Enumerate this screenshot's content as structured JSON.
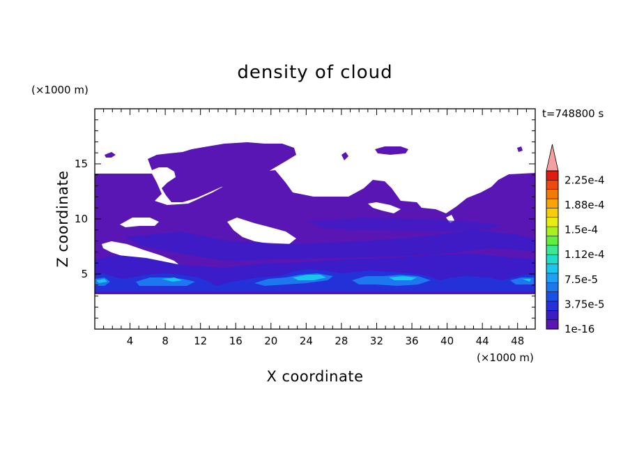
{
  "chart_data": {
    "type": "heatmap",
    "title": "density of cloud",
    "xlabel": "X coordinate",
    "ylabel": "Z coordinate",
    "x_unit": "(×1000 m)",
    "y_unit": "(×1000 m)",
    "time_label": "t=748800 s",
    "xlim": [
      0,
      50
    ],
    "ylim": [
      0,
      20
    ],
    "x_ticks": [
      4,
      8,
      12,
      16,
      20,
      24,
      28,
      32,
      36,
      40,
      44,
      48
    ],
    "y_ticks": [
      5,
      10,
      15
    ],
    "colorbar": {
      "labels": [
        "1e-16",
        "3.75e-5",
        "7.5e-5",
        "1.12e-4",
        "1.5e-4",
        "1.88e-4",
        "2.25e-4"
      ],
      "colors": [
        "#5a16b4",
        "#3b1cc8",
        "#2430d8",
        "#1a50e8",
        "#1d78f0",
        "#1ea0f4",
        "#18c6ee",
        "#20dcc8",
        "#3ce890",
        "#62ee40",
        "#a8f020",
        "#e8ec10",
        "#f8cc08",
        "#f8a408",
        "#f47a08",
        "#ee4a0c",
        "#e01c10"
      ],
      "extend_color": "#f4a0a0"
    },
    "cloud_layer_fill": "#5a16b4",
    "low_layer_peak_colors": [
      "#2430d8",
      "#1d78f0",
      "#18c6ee"
    ]
  }
}
